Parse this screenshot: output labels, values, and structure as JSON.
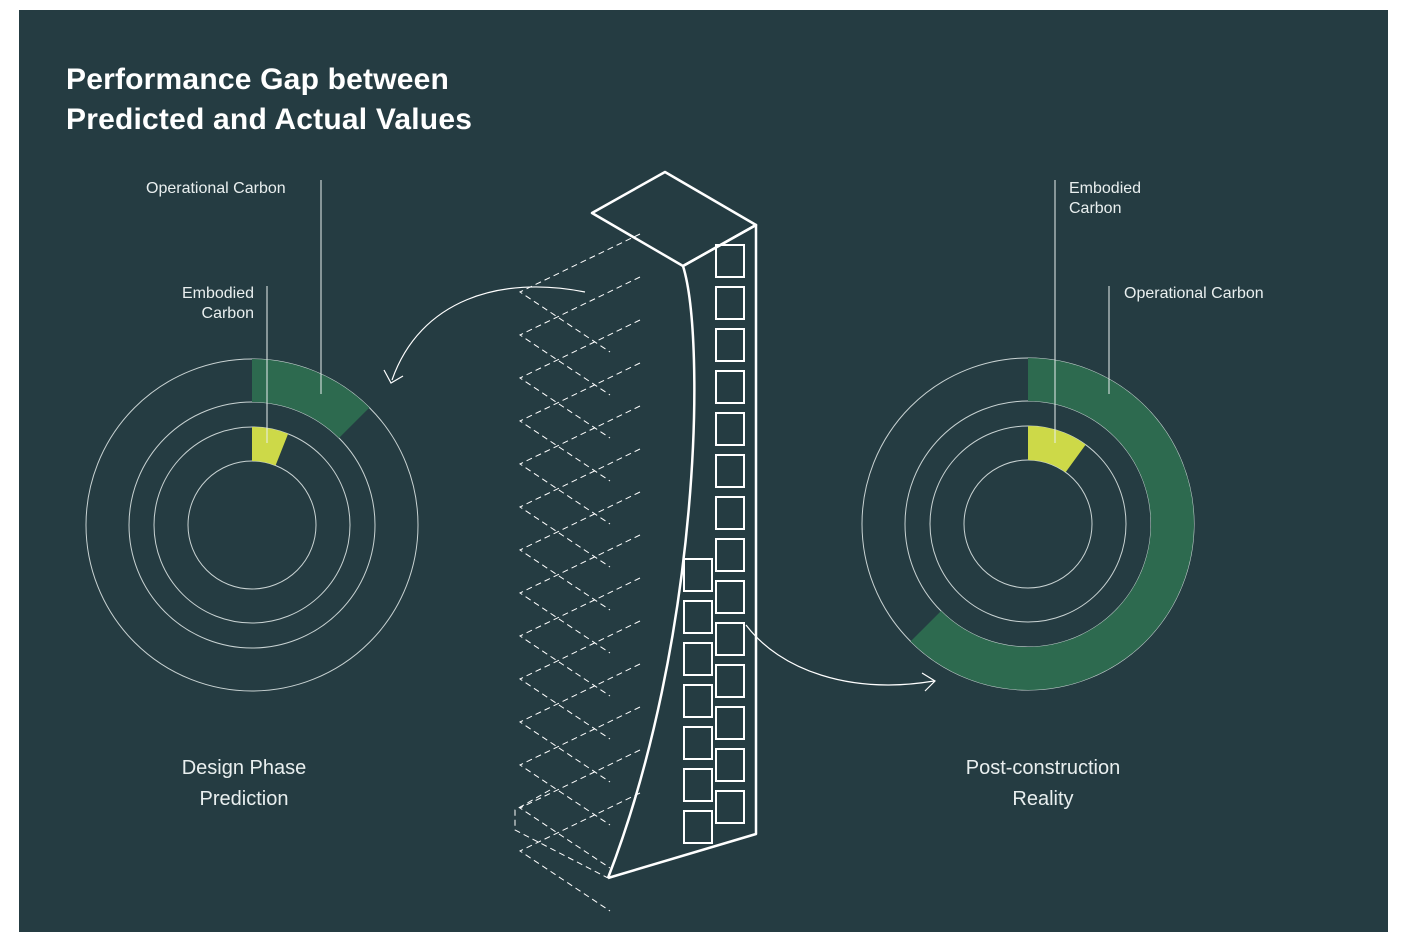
{
  "title": {
    "line1": "Performance Gap between",
    "line2": "Predicted and Actual Values"
  },
  "design": {
    "operational_label": "Operational Carbon",
    "embodied_label_line1": "Embodied",
    "embodied_label_line2": "Carbon",
    "caption_line1": "Design Phase",
    "caption_line2": "Prediction",
    "operational_fraction": 0.125,
    "embodied_fraction": 0.06
  },
  "reality": {
    "embodied_label_line1": "Embodied",
    "embodied_label_line2": "Carbon",
    "operational_label": "Operational Carbon",
    "caption_line1": "Post-construction",
    "caption_line2": "Reality",
    "operational_fraction": 0.625,
    "embodied_fraction": 0.1
  },
  "colors": {
    "background": "#253c42",
    "operational": "#2d6a4f",
    "embodied": "#cdd948",
    "line": "#ffffff"
  }
}
